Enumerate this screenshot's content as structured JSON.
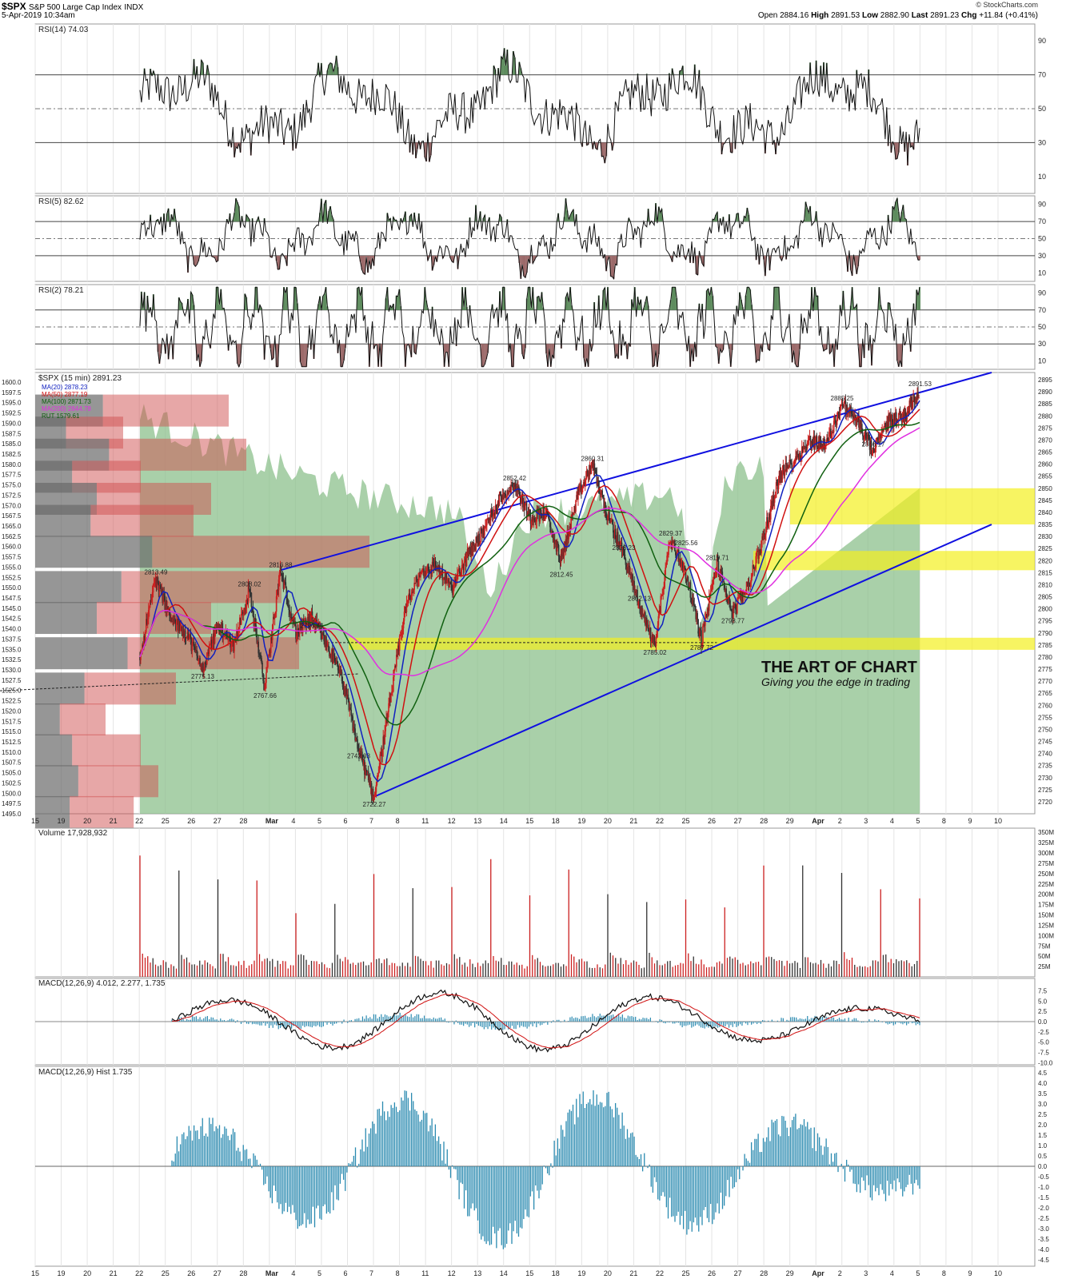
{
  "header": {
    "symbol": "$SPX",
    "name": "S&P 500 Large Cap Index",
    "exchange": "INDX",
    "date": "5-Apr-2019 10:34am",
    "copyright": "© StockCharts.com",
    "quote": {
      "open_label": "Open",
      "open": "2884.16",
      "high_label": "High",
      "high": "2891.53",
      "low_label": "Low",
      "low": "2882.90",
      "last_label": "Last",
      "last": "2891.23",
      "chg_label": "Chg",
      "chg": "+11.84 (+0.41%)"
    }
  },
  "watermark": {
    "title": "THE ART OF CHART",
    "tagline": "Giving you the edge in trading"
  },
  "colors": {
    "up": "#cc2020",
    "down": "#333333",
    "ma20": "#1020c0",
    "ma50": "#d01010",
    "ma100": "#106010",
    "ma200": "#e030e0",
    "trend": "#1010e0",
    "rut_area": "#8cc08c",
    "highlight": "#f4f020",
    "vol_up": "#cc2020",
    "macd_hist": "#2a8ab0"
  },
  "chart_data": [
    {
      "type": "line",
      "panel": "rsi14",
      "title": "RSI(14) 74.03",
      "y_ticks": [
        "90",
        "70",
        "50",
        "30",
        "10"
      ],
      "ylim": [
        0,
        100
      ],
      "levels": [
        70,
        50,
        30
      ]
    },
    {
      "type": "line",
      "panel": "rsi5",
      "title": "RSI(5) 82.62",
      "y_ticks": [
        "90",
        "70",
        "50",
        "30",
        "10"
      ],
      "ylim": [
        0,
        100
      ],
      "levels": [
        70,
        50,
        30
      ]
    },
    {
      "type": "line",
      "panel": "rsi2",
      "title": "RSI(2) 78.21",
      "y_ticks": [
        "90",
        "70",
        "50",
        "30",
        "10"
      ],
      "ylim": [
        0,
        100
      ],
      "levels": [
        70,
        50,
        30
      ]
    },
    {
      "type": "line",
      "panel": "price",
      "title": "$SPX (15 min) 2891.23",
      "legend": [
        {
          "label": "MA(20) 2878.23",
          "color": "#1020c0"
        },
        {
          "label": "MA(50) 2877.19",
          "color": "#d01010"
        },
        {
          "label": "MA(100) 2871.73",
          "color": "#106010"
        },
        {
          "label": "MA(200) 2844.78",
          "color": "#e030e0"
        },
        {
          "label": "RUT 1579.61",
          "color": "#106010"
        }
      ],
      "ylim": [
        2715,
        2898
      ],
      "right_ticks": [
        "2895",
        "2890",
        "2885",
        "2880",
        "2875",
        "2870",
        "2865",
        "2860",
        "2855",
        "2850",
        "2845",
        "2840",
        "2835",
        "2830",
        "2825",
        "2820",
        "2815",
        "2810",
        "2805",
        "2800",
        "2795",
        "2790",
        "2785",
        "2780",
        "2775",
        "2770",
        "2765",
        "2760",
        "2755",
        "2750",
        "2745",
        "2740",
        "2735",
        "2730",
        "2725",
        "2720"
      ],
      "left_ticks": [
        "1600.0",
        "1597.5",
        "1595.0",
        "1592.5",
        "1590.0",
        "1587.5",
        "1585.0",
        "1582.5",
        "1580.0",
        "1577.5",
        "1575.0",
        "1572.5",
        "1570.0",
        "1567.5",
        "1565.0",
        "1562.5",
        "1560.0",
        "1557.5",
        "1555.0",
        "1552.5",
        "1550.0",
        "1547.5",
        "1545.0",
        "1542.5",
        "1540.0",
        "1537.5",
        "1535.0",
        "1532.5",
        "1530.0",
        "1527.5",
        "1525.0",
        "1522.5",
        "1520.0",
        "1517.5",
        "1515.0",
        "1512.5",
        "1510.0",
        "1507.5",
        "1505.0",
        "1502.5",
        "1500.0",
        "1497.5",
        "1495.0"
      ],
      "price_path": [
        [
          0,
          2780
        ],
        [
          1,
          2813
        ],
        [
          2,
          2795
        ],
        [
          3,
          2790
        ],
        [
          4,
          2775
        ],
        [
          5,
          2793
        ],
        [
          6,
          2785
        ],
        [
          7,
          2808
        ],
        [
          8,
          2767
        ],
        [
          9,
          2816
        ],
        [
          10,
          2790
        ],
        [
          11,
          2796
        ],
        [
          12,
          2785
        ],
        [
          13,
          2770
        ],
        [
          14,
          2742
        ],
        [
          15,
          2722
        ],
        [
          16,
          2760
        ],
        [
          17,
          2800
        ],
        [
          18,
          2815
        ],
        [
          19,
          2818
        ],
        [
          20,
          2808
        ],
        [
          21,
          2822
        ],
        [
          22,
          2832
        ],
        [
          23,
          2845
        ],
        [
          24,
          2852
        ],
        [
          25,
          2838
        ],
        [
          26,
          2840
        ],
        [
          27,
          2820
        ],
        [
          28,
          2845
        ],
        [
          29,
          2860
        ],
        [
          30,
          2838
        ],
        [
          31,
          2823
        ],
        [
          32,
          2802
        ],
        [
          33,
          2785
        ],
        [
          34,
          2829
        ],
        [
          35,
          2815
        ],
        [
          36,
          2787
        ],
        [
          37,
          2819
        ],
        [
          38,
          2798
        ],
        [
          39,
          2810
        ],
        [
          40,
          2830
        ],
        [
          41,
          2855
        ],
        [
          42,
          2862
        ],
        [
          43,
          2870
        ],
        [
          44,
          2868
        ],
        [
          45,
          2885
        ],
        [
          46,
          2878
        ],
        [
          47,
          2865
        ],
        [
          48,
          2878
        ],
        [
          49,
          2880
        ],
        [
          50,
          2891
        ]
      ],
      "price_labels": [
        {
          "text": "2813.49",
          "x": 1,
          "y": 2813
        },
        {
          "text": "2775.13",
          "x": 4,
          "y": 2775
        },
        {
          "text": "2808.02",
          "x": 7,
          "y": 2808
        },
        {
          "text": "2767.66",
          "x": 8,
          "y": 2767
        },
        {
          "text": "2816.88",
          "x": 9,
          "y": 2816
        },
        {
          "text": "2796.44",
          "x": 11,
          "y": 2796
        },
        {
          "text": "2742.03",
          "x": 14,
          "y": 2742
        },
        {
          "text": "2722.27",
          "x": 15,
          "y": 2722
        },
        {
          "text": "2852.42",
          "x": 24,
          "y": 2852
        },
        {
          "text": "2860.31",
          "x": 29,
          "y": 2860
        },
        {
          "text": "2812.45",
          "x": 27,
          "y": 2812
        },
        {
          "text": "2823.23",
          "x": 31,
          "y": 2823
        },
        {
          "text": "2802.13",
          "x": 32,
          "y": 2802
        },
        {
          "text": "2785.02",
          "x": 33,
          "y": 2785
        },
        {
          "text": "2829.37",
          "x": 34,
          "y": 2829
        },
        {
          "text": "2825.56",
          "x": 35,
          "y": 2825
        },
        {
          "text": "2787.72",
          "x": 36,
          "y": 2787
        },
        {
          "text": "2819.71",
          "x": 37,
          "y": 2819
        },
        {
          "text": "2798.77",
          "x": 38,
          "y": 2798
        },
        {
          "text": "2885.25",
          "x": 45,
          "y": 2885
        },
        {
          "text": "2866.17",
          "x": 47,
          "y": 2866
        },
        {
          "text": "2891.53",
          "x": 50,
          "y": 2891
        }
      ],
      "highlight_zones": [
        [
          2835,
          2850
        ],
        [
          2816,
          2824
        ],
        [
          2783,
          2788
        ]
      ]
    },
    {
      "type": "bar",
      "panel": "volume",
      "title": "Volume 17,928,932",
      "y_ticks": [
        "350M",
        "325M",
        "300M",
        "275M",
        "250M",
        "225M",
        "200M",
        "175M",
        "150M",
        "125M",
        "100M",
        "75M",
        "50M",
        "25M"
      ],
      "ylim": [
        0,
        360
      ]
    },
    {
      "type": "line",
      "panel": "macd",
      "title": "MACD(12,26,9) 4.012, 2.277, 1.735",
      "y_ticks": [
        "7.5",
        "5.0",
        "2.5",
        "0.0",
        "-2.5",
        "-5.0",
        "-7.5",
        "-10.0"
      ],
      "ylim": [
        -10.5,
        10.5
      ]
    },
    {
      "type": "bar",
      "panel": "macd_hist",
      "title": "MACD(12,26,9) Hist 1.735",
      "y_ticks": [
        "4.5",
        "4.0",
        "3.5",
        "3.0",
        "2.5",
        "2.0",
        "1.5",
        "1.0",
        "0.5",
        "0.0",
        "-0.5",
        "-1.0",
        "-1.5",
        "-2.0",
        "-2.5",
        "-3.0",
        "-3.5",
        "-4.0",
        "-4.5"
      ],
      "ylim": [
        -4.8,
        4.8
      ]
    }
  ],
  "x_axis": {
    "labels": [
      "15",
      "19",
      "20",
      "21",
      "22",
      "25",
      "26",
      "27",
      "28",
      "Mar",
      "4",
      "5",
      "6",
      "7",
      "8",
      "11",
      "12",
      "13",
      "14",
      "15",
      "18",
      "19",
      "20",
      "21",
      "22",
      "25",
      "26",
      "27",
      "28",
      "29",
      "Apr",
      "2",
      "3",
      "4",
      "5",
      "8",
      "9",
      "10"
    ]
  }
}
